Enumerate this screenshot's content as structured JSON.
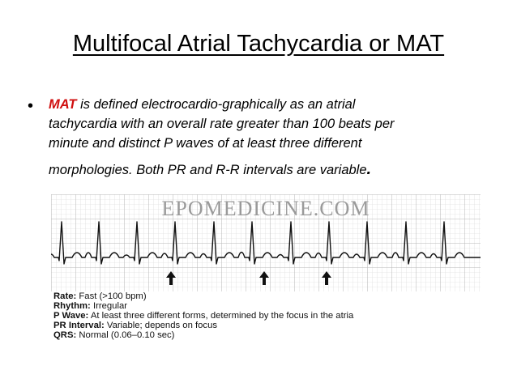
{
  "slide": {
    "title": "Multifocal Atrial Tachycardia or MAT",
    "bullet": {
      "keyword": "MAT",
      "line1_rest": " is defined electrocardio-graphically as an atrial",
      "line2": "tachycardia with an overall rate greater than 100 beats per",
      "line3": "minute and distinct P waves of at least three different",
      "line4": "morphologies. Both PR and R-R intervals are variable",
      "end_mark": "."
    }
  },
  "figure": {
    "watermark": "EPOMEDICINE.COM",
    "arrow_count": 3,
    "grid_color": "#c9c9c9",
    "trace_color": "#111111",
    "criteria": [
      {
        "label": "Rate:",
        "value": " Fast (>100 bpm)"
      },
      {
        "label": "Rhythm:",
        "value": " Irregular"
      },
      {
        "label": "P Wave:",
        "value": " At least three different forms, determined by the focus in the atria"
      },
      {
        "label": "PR Interval:",
        "value": " Variable; depends on focus"
      },
      {
        "label": "QRS:",
        "value": " Normal (0.06–0.10 sec)"
      }
    ]
  }
}
